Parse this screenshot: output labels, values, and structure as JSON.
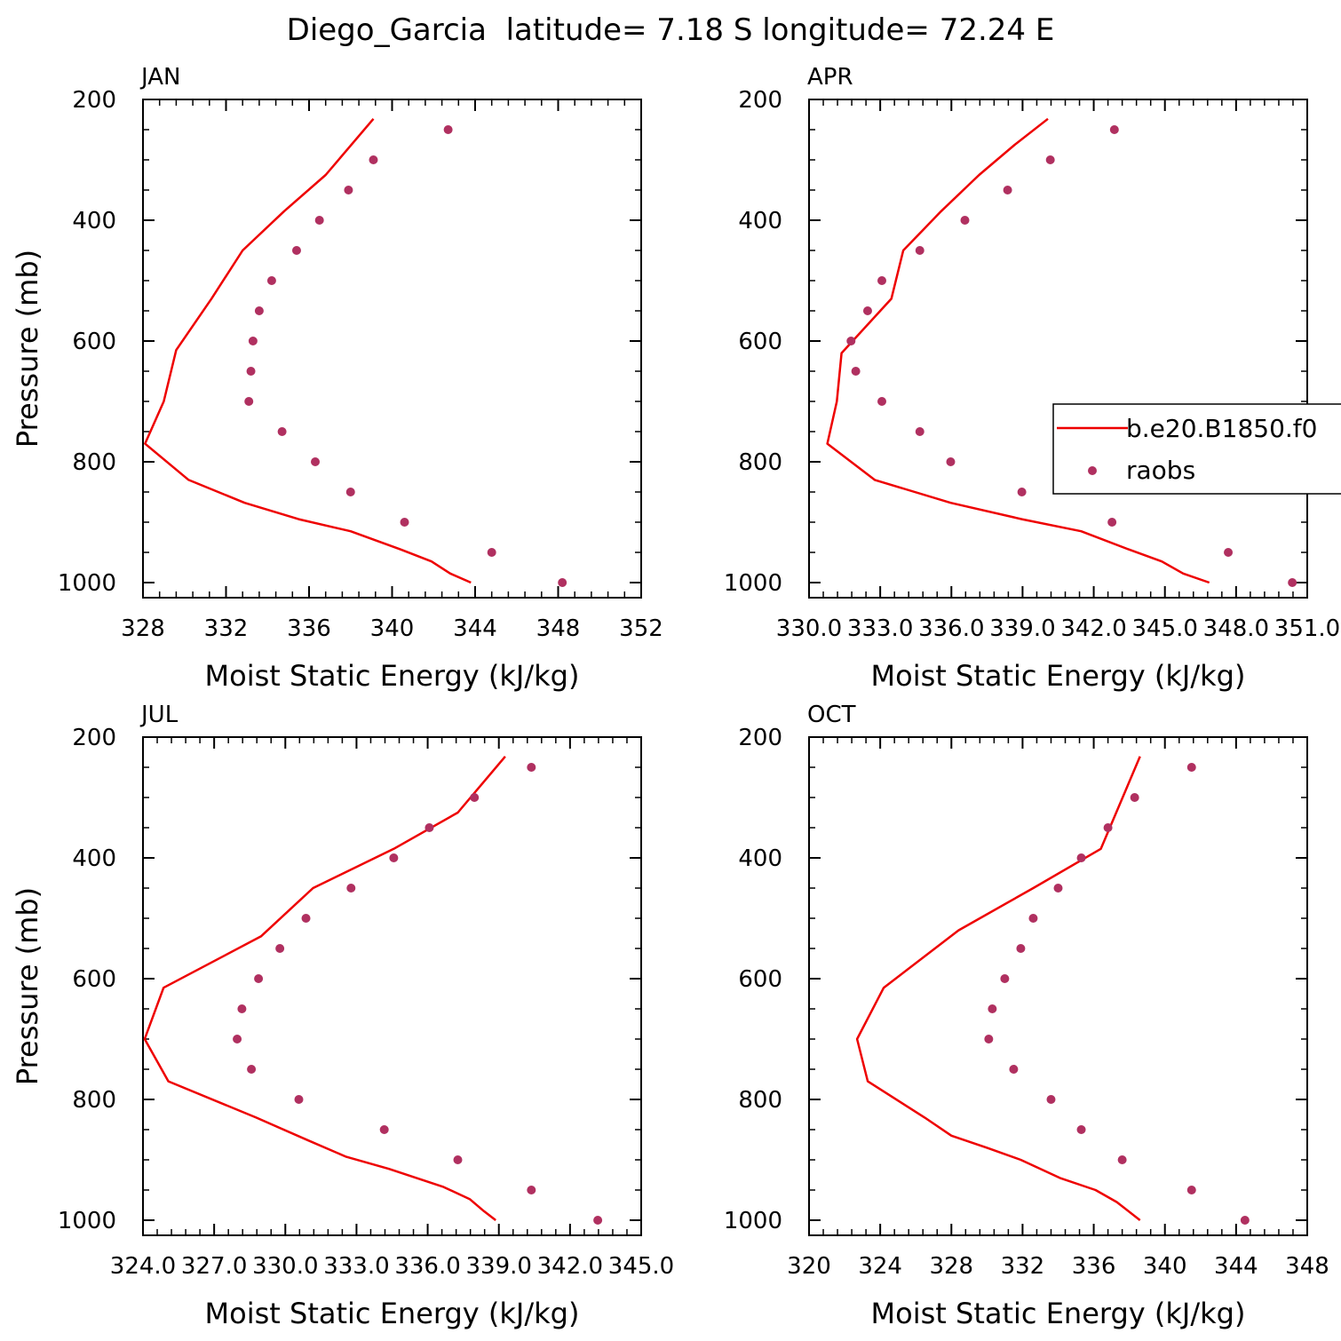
{
  "figure": {
    "title": "Diego_Garcia  latitude= 7.18 S longitude= 72.24 E"
  },
  "legend": {
    "entries": [
      {
        "label": "b.e20.B1850.f0",
        "kind": "line",
        "color": "#ee0000"
      },
      {
        "label": "raobs",
        "kind": "marker",
        "color": "#b03060"
      }
    ]
  },
  "chart_data": [
    {
      "type": "line",
      "title": "JAN",
      "xlabel": "Moist Static Energy (kJ/kg)",
      "ylabel": "Pressure (mb)",
      "xlim": [
        328,
        352
      ],
      "ylim": [
        200,
        1025
      ],
      "y_inverted": true,
      "x_ticks": [
        "328",
        "332",
        "336",
        "340",
        "344",
        "348",
        "352"
      ],
      "x_tick_values": [
        328,
        332,
        336,
        340,
        344,
        348,
        352
      ],
      "y_ticks": [
        "200",
        "400",
        "600",
        "800",
        "1000"
      ],
      "y_tick_values": [
        200,
        400,
        600,
        800,
        1000
      ],
      "model": {
        "name": "b.e20.B1850.f0",
        "color": "#ee0000",
        "x": [
          343.8,
          342.8,
          341.9,
          340.4,
          338.0,
          335.5,
          332.9,
          330.2,
          328.1,
          329.0,
          329.6,
          331.3,
          332.8,
          334.8,
          336.8,
          339.1
        ],
        "y": [
          1000,
          985,
          965,
          945,
          915,
          895,
          868,
          830,
          770,
          700,
          615,
          530,
          450,
          385,
          325,
          232
        ]
      },
      "obs": {
        "name": "raobs",
        "color": "#b03060",
        "x": [
          348.2,
          344.8,
          340.6,
          338.0,
          336.3,
          334.7,
          333.1,
          333.2,
          333.3,
          333.6,
          334.2,
          335.4,
          336.5,
          337.9,
          339.1,
          342.7
        ],
        "y": [
          1000,
          950,
          900,
          850,
          800,
          750,
          700,
          650,
          600,
          550,
          500,
          450,
          400,
          350,
          300,
          250
        ]
      }
    },
    {
      "type": "line",
      "title": "APR",
      "xlabel": "Moist Static Energy (kJ/kg)",
      "ylabel": "",
      "xlim": [
        330.03,
        351.03
      ],
      "ylim": [
        200,
        1025
      ],
      "y_inverted": true,
      "x_ticks": [
        "330.0",
        "333.0",
        "336.0",
        "339.0",
        "342.0",
        "345.0",
        "348.0",
        "351.0"
      ],
      "x_tick_values": [
        330.03,
        333.03,
        336.03,
        339.03,
        342.03,
        345.03,
        348.03,
        351.03
      ],
      "y_ticks": [
        "200",
        "400",
        "600",
        "800",
        "1000"
      ],
      "y_tick_values": [
        200,
        400,
        600,
        800,
        1000
      ],
      "model": {
        "name": "b.e20.B1850.f0",
        "color": "#ee0000",
        "x": [
          346.9,
          345.8,
          344.9,
          343.5,
          341.5,
          339.0,
          336.0,
          332.8,
          330.8,
          331.2,
          331.4,
          333.5,
          334.0,
          335.6,
          337.2,
          338.7,
          340.1
        ],
        "y": [
          1000,
          985,
          965,
          945,
          915,
          895,
          868,
          830,
          770,
          700,
          620,
          530,
          450,
          385,
          325,
          275,
          232
        ]
      },
      "obs": {
        "name": "raobs",
        "color": "#b03060",
        "x": [
          350.4,
          347.7,
          342.8,
          339.0,
          336.0,
          334.7,
          333.1,
          332.0,
          331.8,
          332.5,
          333.1,
          334.7,
          336.6,
          338.4,
          340.2,
          342.9
        ],
        "y": [
          1000,
          950,
          900,
          850,
          800,
          750,
          700,
          650,
          600,
          550,
          500,
          450,
          400,
          350,
          300,
          250
        ]
      }
    },
    {
      "type": "line",
      "title": "JUL",
      "xlabel": "Moist Static Energy (kJ/kg)",
      "ylabel": "Pressure (mb)",
      "xlim": [
        324.03,
        345.03
      ],
      "ylim": [
        200,
        1025
      ],
      "y_inverted": true,
      "x_ticks": [
        "324.0",
        "327.0",
        "330.0",
        "333.0",
        "336.0",
        "339.0",
        "342.0",
        "345.0"
      ],
      "x_tick_values": [
        324.03,
        327.03,
        330.03,
        333.03,
        336.03,
        339.03,
        342.03,
        345.03
      ],
      "y_ticks": [
        "200",
        "400",
        "600",
        "800",
        "1000"
      ],
      "y_tick_values": [
        200,
        400,
        600,
        800,
        1000
      ],
      "model": {
        "name": "b.e20.B1850.f0",
        "color": "#ee0000",
        "x": [
          338.9,
          338.4,
          337.8,
          336.7,
          334.4,
          332.6,
          331.0,
          328.8,
          325.1,
          324.1,
          324.9,
          329.0,
          331.2,
          334.6,
          337.3,
          339.3
        ],
        "y": [
          1000,
          985,
          965,
          945,
          915,
          895,
          868,
          830,
          770,
          700,
          615,
          530,
          450,
          385,
          325,
          232
        ]
      },
      "obs": {
        "name": "raobs",
        "color": "#b03060",
        "x": [
          343.2,
          340.4,
          337.3,
          334.2,
          330.6,
          328.6,
          328.0,
          328.2,
          328.9,
          329.8,
          330.9,
          332.8,
          334.6,
          336.1,
          338.0,
          340.4
        ],
        "y": [
          1000,
          950,
          900,
          850,
          800,
          750,
          700,
          650,
          600,
          550,
          500,
          450,
          400,
          350,
          300,
          250
        ]
      }
    },
    {
      "type": "line",
      "title": "OCT",
      "xlabel": "Moist Static Energy (kJ/kg)",
      "ylabel": "",
      "xlim": [
        320,
        348
      ],
      "ylim": [
        200,
        1025
      ],
      "y_inverted": true,
      "x_ticks": [
        "320",
        "324",
        "328",
        "332",
        "336",
        "340",
        "344",
        "348"
      ],
      "x_tick_values": [
        320,
        324,
        328,
        332,
        336,
        340,
        344,
        348
      ],
      "y_ticks": [
        "200",
        "400",
        "600",
        "800",
        "1000"
      ],
      "y_tick_values": [
        200,
        400,
        600,
        800,
        1000
      ],
      "model": {
        "name": "b.e20.B1850.f0",
        "color": "#ee0000",
        "x": [
          338.6,
          337.3,
          336.1,
          334.1,
          331.9,
          330.0,
          328.0,
          326.5,
          323.3,
          322.7,
          324.2,
          328.4,
          332.6,
          336.4,
          338.6
        ],
        "y": [
          1000,
          970,
          950,
          930,
          900,
          880,
          860,
          830,
          770,
          700,
          615,
          520,
          450,
          385,
          232
        ]
      },
      "obs": {
        "name": "raobs",
        "color": "#b03060",
        "x": [
          344.5,
          341.5,
          337.6,
          335.3,
          333.6,
          331.5,
          330.1,
          330.3,
          331.0,
          331.9,
          332.6,
          334.0,
          335.3,
          336.8,
          338.3,
          341.5
        ],
        "y": [
          1000,
          950,
          900,
          850,
          800,
          750,
          700,
          650,
          600,
          550,
          500,
          450,
          400,
          350,
          300,
          250
        ]
      }
    }
  ]
}
